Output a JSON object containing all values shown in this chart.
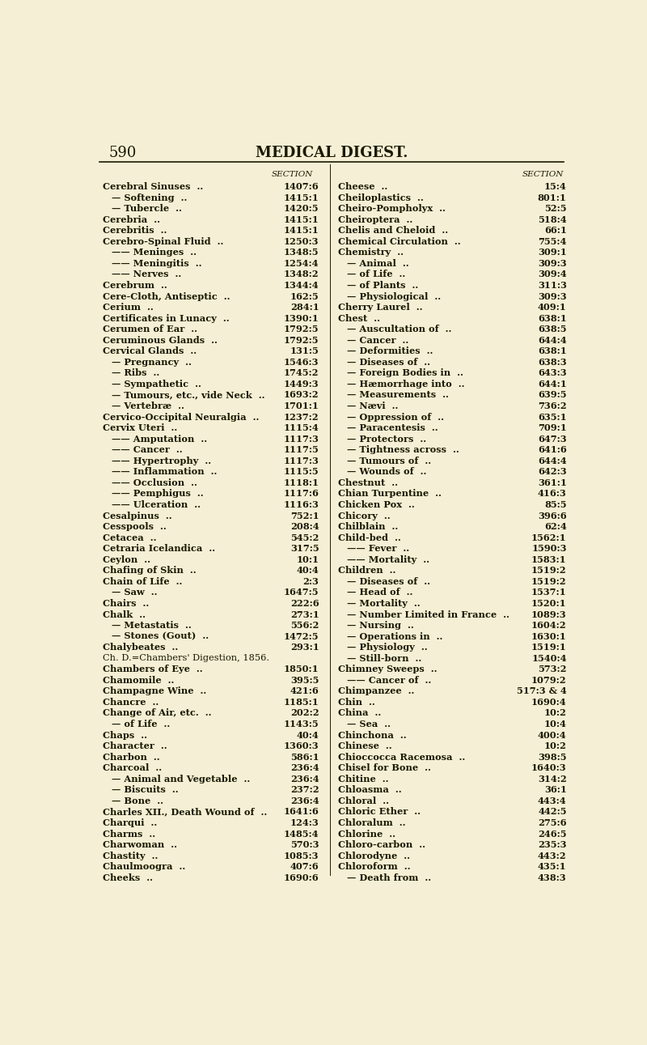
{
  "page_number": "590",
  "header_title": "MEDICAL DIGEST.",
  "bg_color": "#f5efd5",
  "text_color": "#1a1a00",
  "section_header": "SECTION",
  "left_entries": [
    [
      "Cerebral Sinuses  ..",
      "1407:6",
      0
    ],
    [
      "— Softening  ..",
      "1415:1",
      1
    ],
    [
      "— Tubercle  ..",
      "1420:5",
      1
    ],
    [
      "Cerebria  ..",
      "1415:1",
      0
    ],
    [
      "Cerebritis  ..",
      "1415:1",
      0
    ],
    [
      "Cerebro-Spinal Fluid  ..",
      "1250:3",
      0
    ],
    [
      "—— Meninges  ..",
      "1348:5",
      1
    ],
    [
      "—— Meningitis  ..",
      "1254:4",
      1
    ],
    [
      "—— Nerves  ..",
      "1348:2",
      1
    ],
    [
      "Cerebrum  ..",
      "1344:4",
      0
    ],
    [
      "Cere-Cloth, Antiseptic  ..",
      "162:5",
      0
    ],
    [
      "Cerium  ..",
      "284:1",
      0
    ],
    [
      "Certificates in Lunacy  ..",
      "1390:1",
      0
    ],
    [
      "Cerumen of Ear  ..",
      "1792:5",
      0
    ],
    [
      "Ceruminous Glands  ..",
      "1792:5",
      0
    ],
    [
      "Cervical Glands  ..",
      "131:5",
      0
    ],
    [
      "— Pregnancy  ..",
      "1546:3",
      1
    ],
    [
      "— Ribs  ..",
      "1745:2",
      1
    ],
    [
      "— Sympathetic  ..",
      "1449:3",
      1
    ],
    [
      "— Tumours, etc., vide Neck  ..",
      "1693:2",
      1
    ],
    [
      "— Vertebræ  ..",
      "1701:1",
      1
    ],
    [
      "Cervico-Occipital Neuralgia  ..",
      "1237:2",
      0
    ],
    [
      "Cervix Uteri  ..",
      "1115:4",
      0
    ],
    [
      "—— Amputation  ..",
      "1117:3",
      1
    ],
    [
      "—— Cancer  ..",
      "1117:5",
      1
    ],
    [
      "—— Hypertrophy  ..",
      "1117:3",
      1
    ],
    [
      "—— Inflammation  ..",
      "1115:5",
      1
    ],
    [
      "—— Occlusion  ..",
      "1118:1",
      1
    ],
    [
      "—— Pemphigus  ..",
      "1117:6",
      1
    ],
    [
      "—— Ulceration  ..",
      "1116:3",
      1
    ],
    [
      "Cesalpinus  ..",
      "752:1",
      0
    ],
    [
      "Cesspools  ..",
      "208:4",
      0
    ],
    [
      "Cetacea  ..",
      "545:2",
      0
    ],
    [
      "Cetraria Icelandica  ..",
      "317:5",
      0
    ],
    [
      "Ceylon  ..",
      "10:1",
      0
    ],
    [
      "Chafing of Skin  ..",
      "40:4",
      0
    ],
    [
      "Chain of Life  ..",
      "2:3",
      0
    ],
    [
      "— Saw  ..",
      "1647:5",
      1
    ],
    [
      "Chairs  ..",
      "222:6",
      0
    ],
    [
      "Chalk  ..",
      "273:1",
      0
    ],
    [
      "— Metastatis  ..",
      "556:2",
      1
    ],
    [
      "— Stones (Gout)  ..",
      "1472:5",
      1
    ],
    [
      "Chalybeates  ..",
      "293:1",
      0
    ],
    [
      "Ch. D.=Chambers' Digestion, 1856.",
      "",
      0
    ],
    [
      "Chambers of Eye  ..",
      "1850:1",
      0
    ],
    [
      "Chamomile  ..",
      "395:5",
      0
    ],
    [
      "Champagne Wine  ..",
      "421:6",
      0
    ],
    [
      "Chancre  ..",
      "1185:1",
      0
    ],
    [
      "Change of Air, etc.  ..",
      "202:2",
      0
    ],
    [
      "— of Life  ..",
      "1143:5",
      1
    ],
    [
      "Chaps  ..",
      "40:4",
      0
    ],
    [
      "Character  ..",
      "1360:3",
      0
    ],
    [
      "Charbon  ..",
      "586:1",
      0
    ],
    [
      "Charcoal  ..",
      "236:4",
      0
    ],
    [
      "— Animal and Vegetable  ..",
      "236:4",
      1
    ],
    [
      "— Biscuits  ..",
      "237:2",
      1
    ],
    [
      "— Bone  ..",
      "236:4",
      1
    ],
    [
      "Charles XII., Death Wound of  ..",
      "1641:6",
      0
    ],
    [
      "Charqui  ..",
      "124:3",
      0
    ],
    [
      "Charms  ..",
      "1485:4",
      0
    ],
    [
      "Charwoman  ..",
      "570:3",
      0
    ],
    [
      "Chastity  ..",
      "1085:3",
      0
    ],
    [
      "Chaulmoogra  ..",
      "407:6",
      0
    ],
    [
      "Cheeks  ..",
      "1690:6",
      0
    ]
  ],
  "right_entries": [
    [
      "Cheese  ..",
      "15:4",
      0
    ],
    [
      "Cheiloplastics  ..",
      "801:1",
      0
    ],
    [
      "Cheiro-Pompholyx  ..",
      "52:5",
      0
    ],
    [
      "Cheiroptera  ..",
      "518:4",
      0
    ],
    [
      "Chelis and Cheloid  ..",
      "66:1",
      0
    ],
    [
      "Chemical Circulation  ..",
      "755:4",
      0
    ],
    [
      "Chemistry  ..",
      "309:1",
      0
    ],
    [
      "— Animal  ..",
      "309:3",
      1
    ],
    [
      "— of Life  ..",
      "309:4",
      1
    ],
    [
      "— of Plants  ..",
      "311:3",
      1
    ],
    [
      "— Physiological  ..",
      "309:3",
      1
    ],
    [
      "Cherry Laurel  ..",
      "409:1",
      0
    ],
    [
      "Chest  ..",
      "638:1",
      0
    ],
    [
      "— Auscultation of  ..",
      "638:5",
      1
    ],
    [
      "— Cancer  ..",
      "644:4",
      1
    ],
    [
      "— Deformities  ..",
      "638:1",
      1
    ],
    [
      "— Diseases of  ..",
      "638:3",
      1
    ],
    [
      "— Foreign Bodies in  ..",
      "643:3",
      1
    ],
    [
      "— Hæmorrhage into  ..",
      "644:1",
      1
    ],
    [
      "— Measurements  ..",
      "639:5",
      1
    ],
    [
      "— Nævi  ..",
      "736:2",
      1
    ],
    [
      "— Oppression of  ..",
      "635:1",
      1
    ],
    [
      "— Paracentesis  ..",
      "709:1",
      1
    ],
    [
      "— Protectors  ..",
      "647:3",
      1
    ],
    [
      "— Tightness across  ..",
      "641:6",
      1
    ],
    [
      "— Tumours of  ..",
      "644:4",
      1
    ],
    [
      "— Wounds of  ..",
      "642:3",
      1
    ],
    [
      "Chestnut  ..",
      "361:1",
      0
    ],
    [
      "Chian Turpentine  ..",
      "416:3",
      0
    ],
    [
      "Chicken Pox  ..",
      "85:5",
      0
    ],
    [
      "Chicory  ..",
      "396:6",
      0
    ],
    [
      "Chilblain  ..",
      "62:4",
      0
    ],
    [
      "Child-bed  ..",
      "1562:1",
      0
    ],
    [
      "—— Fever  ..",
      "1590:3",
      1
    ],
    [
      "—— Mortality  ..",
      "1583:1",
      1
    ],
    [
      "Children  ..",
      "1519:2",
      0
    ],
    [
      "— Diseases of  ..",
      "1519:2",
      1
    ],
    [
      "— Head of  ..",
      "1537:1",
      1
    ],
    [
      "— Mortality  ..",
      "1520:1",
      1
    ],
    [
      "— Number Limited in France  ..",
      "1089:3",
      1
    ],
    [
      "— Nursing  ..",
      "1604:2",
      1
    ],
    [
      "— Operations in  ..",
      "1630:1",
      1
    ],
    [
      "— Physiology  ..",
      "1519:1",
      1
    ],
    [
      "— Still-born  ..",
      "1540:4",
      1
    ],
    [
      "Chimney Sweeps  ..",
      "573:2",
      0
    ],
    [
      "—— Cancer of  ..",
      "1079:2",
      1
    ],
    [
      "Chimpanzee  ..",
      "517:3 & 4",
      0
    ],
    [
      "Chin  ..",
      "1690:4",
      0
    ],
    [
      "China  ..",
      "10:2",
      0
    ],
    [
      "— Sea  ..",
      "10:4",
      1
    ],
    [
      "Chinchona  ..",
      "400:4",
      0
    ],
    [
      "Chinese  ..",
      "10:2",
      0
    ],
    [
      "Chioccocca Racemosa  ..",
      "398:5",
      0
    ],
    [
      "Chisel for Bone  ..",
      "1640:3",
      0
    ],
    [
      "Chitine  ..",
      "314:2",
      0
    ],
    [
      "Chloasma  ..",
      "36:1",
      0
    ],
    [
      "Chloral  ..",
      "443:4",
      0
    ],
    [
      "Chloric Ether  ..",
      "442:5",
      0
    ],
    [
      "Chloralum  ..",
      "275:6",
      0
    ],
    [
      "Chlorine  ..",
      "246:5",
      0
    ],
    [
      "Chloro-carbon  ..",
      "235:3",
      0
    ],
    [
      "Chlorodyne  ..",
      "443:2",
      0
    ],
    [
      "Chloroform  ..",
      "435:1",
      0
    ],
    [
      "— Death from  ..",
      "438:3",
      1
    ]
  ]
}
